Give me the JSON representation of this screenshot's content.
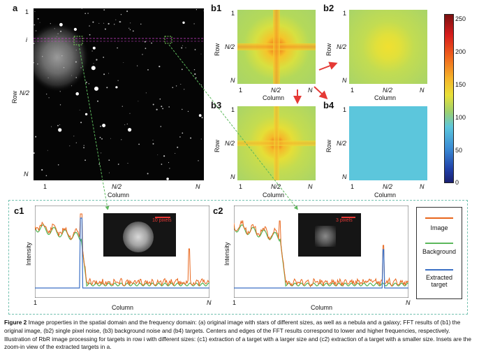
{
  "panel_a": {
    "label": "a",
    "y_ticks": [
      "1",
      "i",
      "N/2",
      "N"
    ],
    "x_ticks": [
      "1",
      "N/2",
      "N"
    ],
    "xlabel": "Column",
    "ylabel": "Row"
  },
  "fft_panels": [
    {
      "label": "b1",
      "x_ticks": [
        "1",
        "N/2",
        "N"
      ],
      "y_ticks": [
        "1",
        "N/2",
        "N"
      ],
      "xlabel": "Column",
      "ylabel": "Row"
    },
    {
      "label": "b2",
      "x_ticks": [
        "1",
        "N/2",
        "N"
      ],
      "y_ticks": [
        "1",
        "N/2",
        "N"
      ],
      "xlabel": "Column",
      "ylabel": "Row"
    },
    {
      "label": "b3",
      "x_ticks": [
        "1",
        "N/2",
        "N"
      ],
      "y_ticks": [
        "1",
        "N/2",
        "N"
      ],
      "xlabel": "Column",
      "ylabel": "Row"
    },
    {
      "label": "b4",
      "x_ticks": [
        "1",
        "N/2",
        "N"
      ],
      "y_ticks": [
        "1",
        "N/2",
        "N"
      ],
      "xlabel": "Column",
      "ylabel": "Row"
    }
  ],
  "colorbar": {
    "ticks": [
      "250",
      "200",
      "150",
      "100",
      "50",
      "0"
    ]
  },
  "panel_c1": {
    "label": "c1",
    "inset_scale": "10 pixels",
    "x_ticks": [
      "1",
      "N"
    ],
    "xlabel": "Column",
    "ylabel": "Intensity"
  },
  "panel_c2": {
    "label": "c2",
    "inset_scale": "3 pixels",
    "x_ticks": [
      "1",
      "N"
    ],
    "xlabel": "Column",
    "ylabel": "Intensity"
  },
  "legend": {
    "items": [
      {
        "label": "Image",
        "color": "#e8661c"
      },
      {
        "label": "Background",
        "color": "#5cb85c"
      },
      {
        "label": "Extracted target",
        "color": "#3a6fc4"
      }
    ]
  },
  "colors": {
    "image": "#e8661c",
    "background": "#5cb85c",
    "target": "#3a6fc4",
    "dashed_box": "#74c2b0",
    "arrow": "#e53935"
  },
  "caption": {
    "figure_label": "Figure 2",
    "text": "Image properties in the spatial domain and the frequency domain: (a) original image with stars of different sizes, as well as a nebula and a galaxy; FFT results of (b1) the original image, (b2) single pixel noise, (b3) background noise and (b4) targets. Centers and edges of the FFT results correspond to lower and higher frequencies, respectively. Illustration of RbR image processing for targets in row i with different sizes: (c1) extraction of a target with a larger size and (c2) extraction of a target with a smaller size. Insets are the zoom-in view of the extracted targets in a."
  }
}
